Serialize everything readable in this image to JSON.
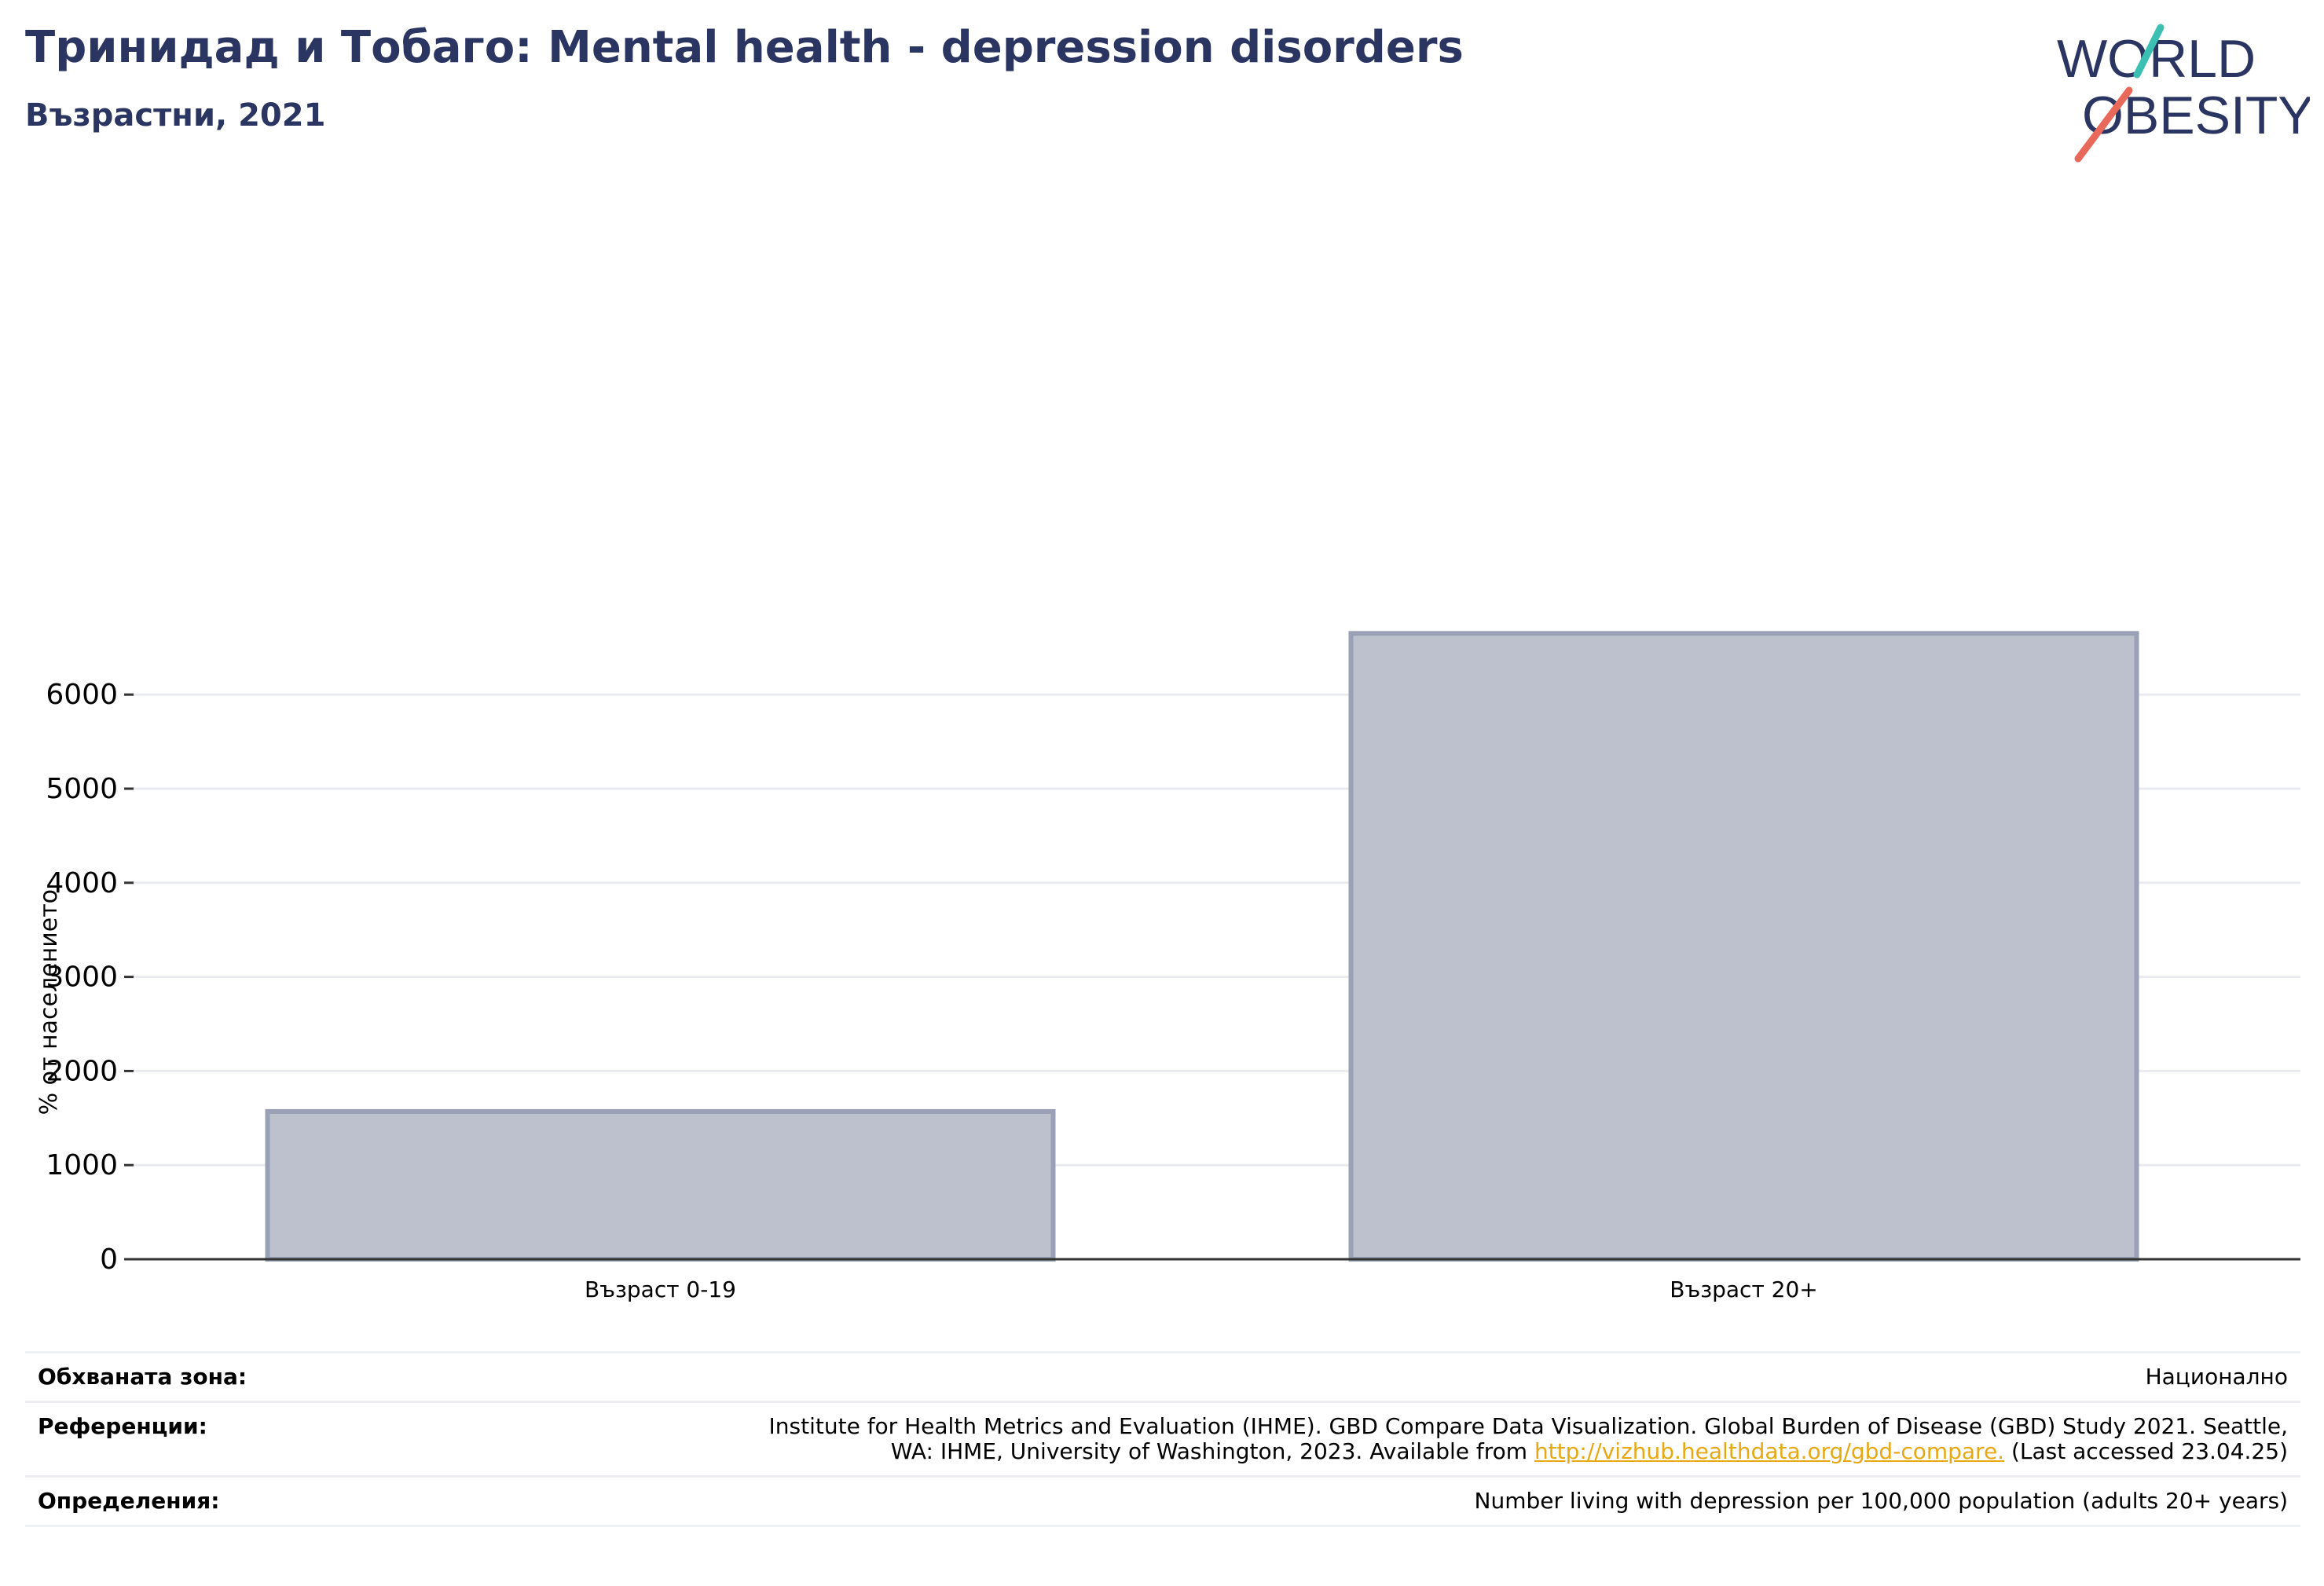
{
  "header": {
    "title": "Тринидад и Тобаго: Mental health - depression disorders",
    "subtitle": "Възрастни, 2021"
  },
  "logo": {
    "line1": "WORLD",
    "line2": "OBESITY",
    "colors": {
      "text": "#2a3562",
      "slash_teal": "#3bbfb3",
      "slash_red": "#e8685a"
    }
  },
  "chart_data": {
    "type": "bar",
    "categories": [
      "Възраст 0-19",
      "Възраст 20+"
    ],
    "values": [
      1570,
      6650
    ],
    "ylabel": "% от населението",
    "ylim": [
      0,
      6800
    ],
    "yticks": [
      0,
      1000,
      2000,
      3000,
      4000,
      5000,
      6000
    ],
    "grid": true,
    "bar_fill": "#bdc1cd",
    "bar_stroke": "#9aa0b5"
  },
  "footer": {
    "rows": [
      {
        "label": "Обхваната зона:",
        "value": "Национално"
      },
      {
        "label": "Референции:",
        "value_line1": "Institute for Health Metrics and Evaluation (IHME). GBD Compare Data Visualization. Global Burden of Disease (GBD) Study 2021. Seattle,",
        "value_line2_pre": "WA: IHME, University of Washington, 2023. Available from ",
        "link": "http://vizhub.healthdata.org/gbd-compare.",
        "value_line2_post": " (Last accessed 23.04.25)"
      },
      {
        "label": "Определения:",
        "value": "Number living with depression per 100,000 population (adults 20+ years)"
      }
    ]
  }
}
